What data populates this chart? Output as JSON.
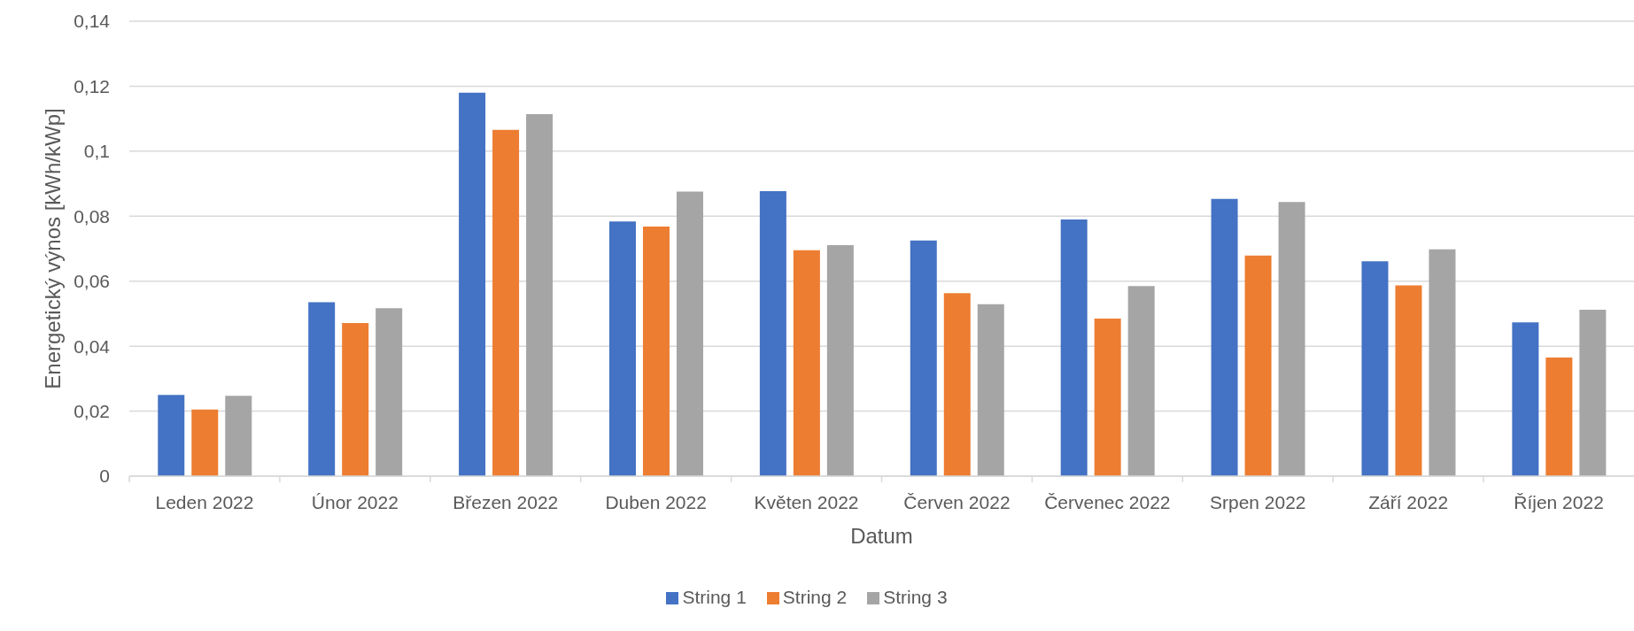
{
  "chart_data": {
    "type": "bar",
    "xlabel": "Datum",
    "ylabel": "Energetický výnos [kWh/kWp]",
    "categories": [
      "Leden 2022",
      "Únor 2022",
      "Březen 2022",
      "Duben 2022",
      "Květen 2022",
      "Červen 2022",
      "Červenec 2022",
      "Srpen 2022",
      "Září 2022",
      "Říjen 2022"
    ],
    "series": [
      {
        "name": "String 1",
        "color": "#4472c4",
        "values": [
          0.025,
          0.0535,
          0.118,
          0.0784,
          0.0877,
          0.0725,
          0.079,
          0.0853,
          0.0661,
          0.0473
        ]
      },
      {
        "name": "String 2",
        "color": "#ed7d31",
        "values": [
          0.0205,
          0.0471,
          0.1066,
          0.0768,
          0.0695,
          0.0563,
          0.0485,
          0.0679,
          0.0587,
          0.0365
        ]
      },
      {
        "name": "String 3",
        "color": "#a5a5a5",
        "values": [
          0.0247,
          0.0517,
          0.1114,
          0.0876,
          0.0711,
          0.0529,
          0.0585,
          0.0844,
          0.0698,
          0.0512
        ]
      }
    ],
    "ylim": [
      0,
      0.14
    ],
    "yticks": [
      0,
      {
        "value": 0.02,
        "label": "0,02"
      },
      {
        "value": 0.04,
        "label": "0,04"
      },
      {
        "value": 0.06,
        "label": "0,06"
      },
      {
        "value": 0.08,
        "label": "0,08"
      },
      {
        "value": 0.1,
        "label": "0,1"
      },
      {
        "value": 0.12,
        "label": "0,12"
      },
      {
        "value": 0.14,
        "label": "0,14"
      }
    ],
    "grid": "y",
    "legend": "bottom"
  }
}
